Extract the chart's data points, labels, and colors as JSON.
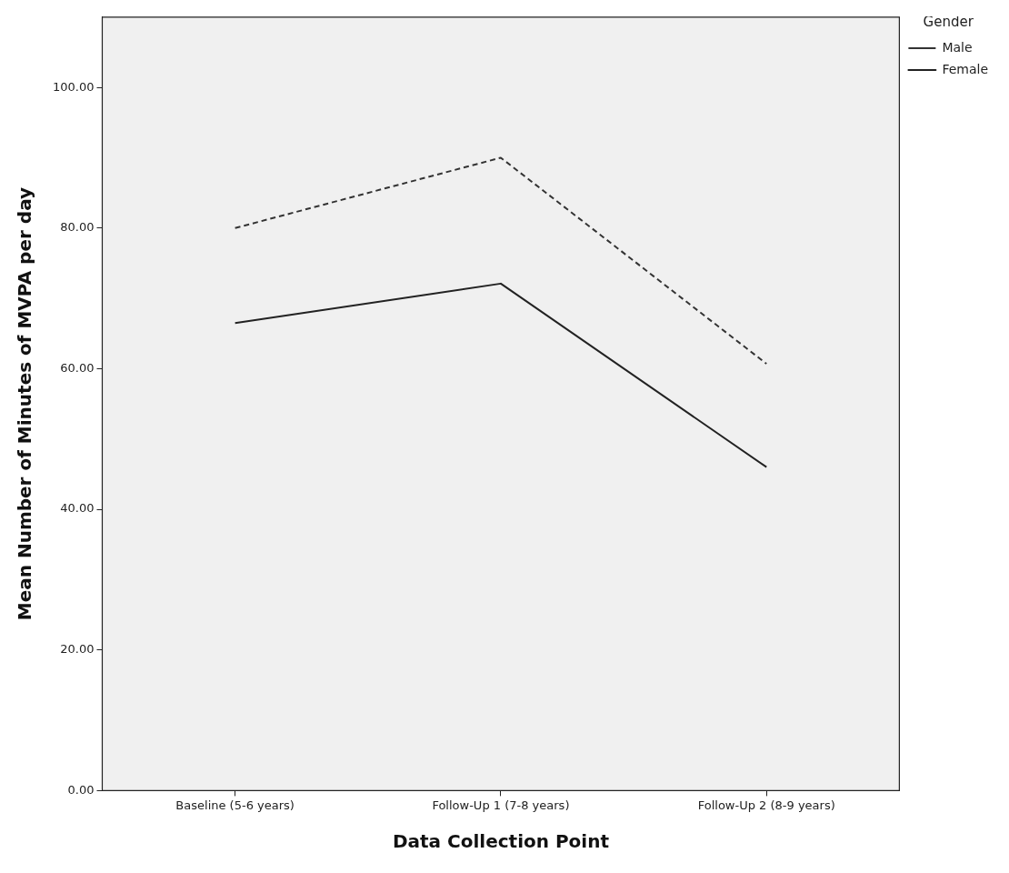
{
  "chart_data": {
    "type": "line",
    "xlabel": "Data Collection Point",
    "ylabel": "Mean Number of Minutes of MVPA per day",
    "legend_title": "Gender",
    "legend": "top right",
    "grid": false,
    "marker": "none",
    "categories": [
      "Baseline (5-6 years)",
      "Follow-Up 1 (7-8 years)",
      "Follow-Up 2 (8-9 years)"
    ],
    "ylim": [
      0,
      110
    ],
    "yticks": [
      {
        "value": 0,
        "label": "0.00"
      },
      {
        "value": 20,
        "label": "20.00"
      },
      {
        "value": 40,
        "label": "40.00"
      },
      {
        "value": 60,
        "label": "60.00"
      },
      {
        "value": 80,
        "label": "80.00"
      },
      {
        "value": 100,
        "label": "100.00"
      }
    ],
    "series": [
      {
        "name": "Male",
        "color": "#333333",
        "line_style": "dashed",
        "values": [
          80,
          90,
          60.7
        ]
      },
      {
        "name": "Female",
        "color": "#222222",
        "line_style": "solid",
        "values": [
          66.5,
          72.1,
          46
        ]
      }
    ]
  }
}
